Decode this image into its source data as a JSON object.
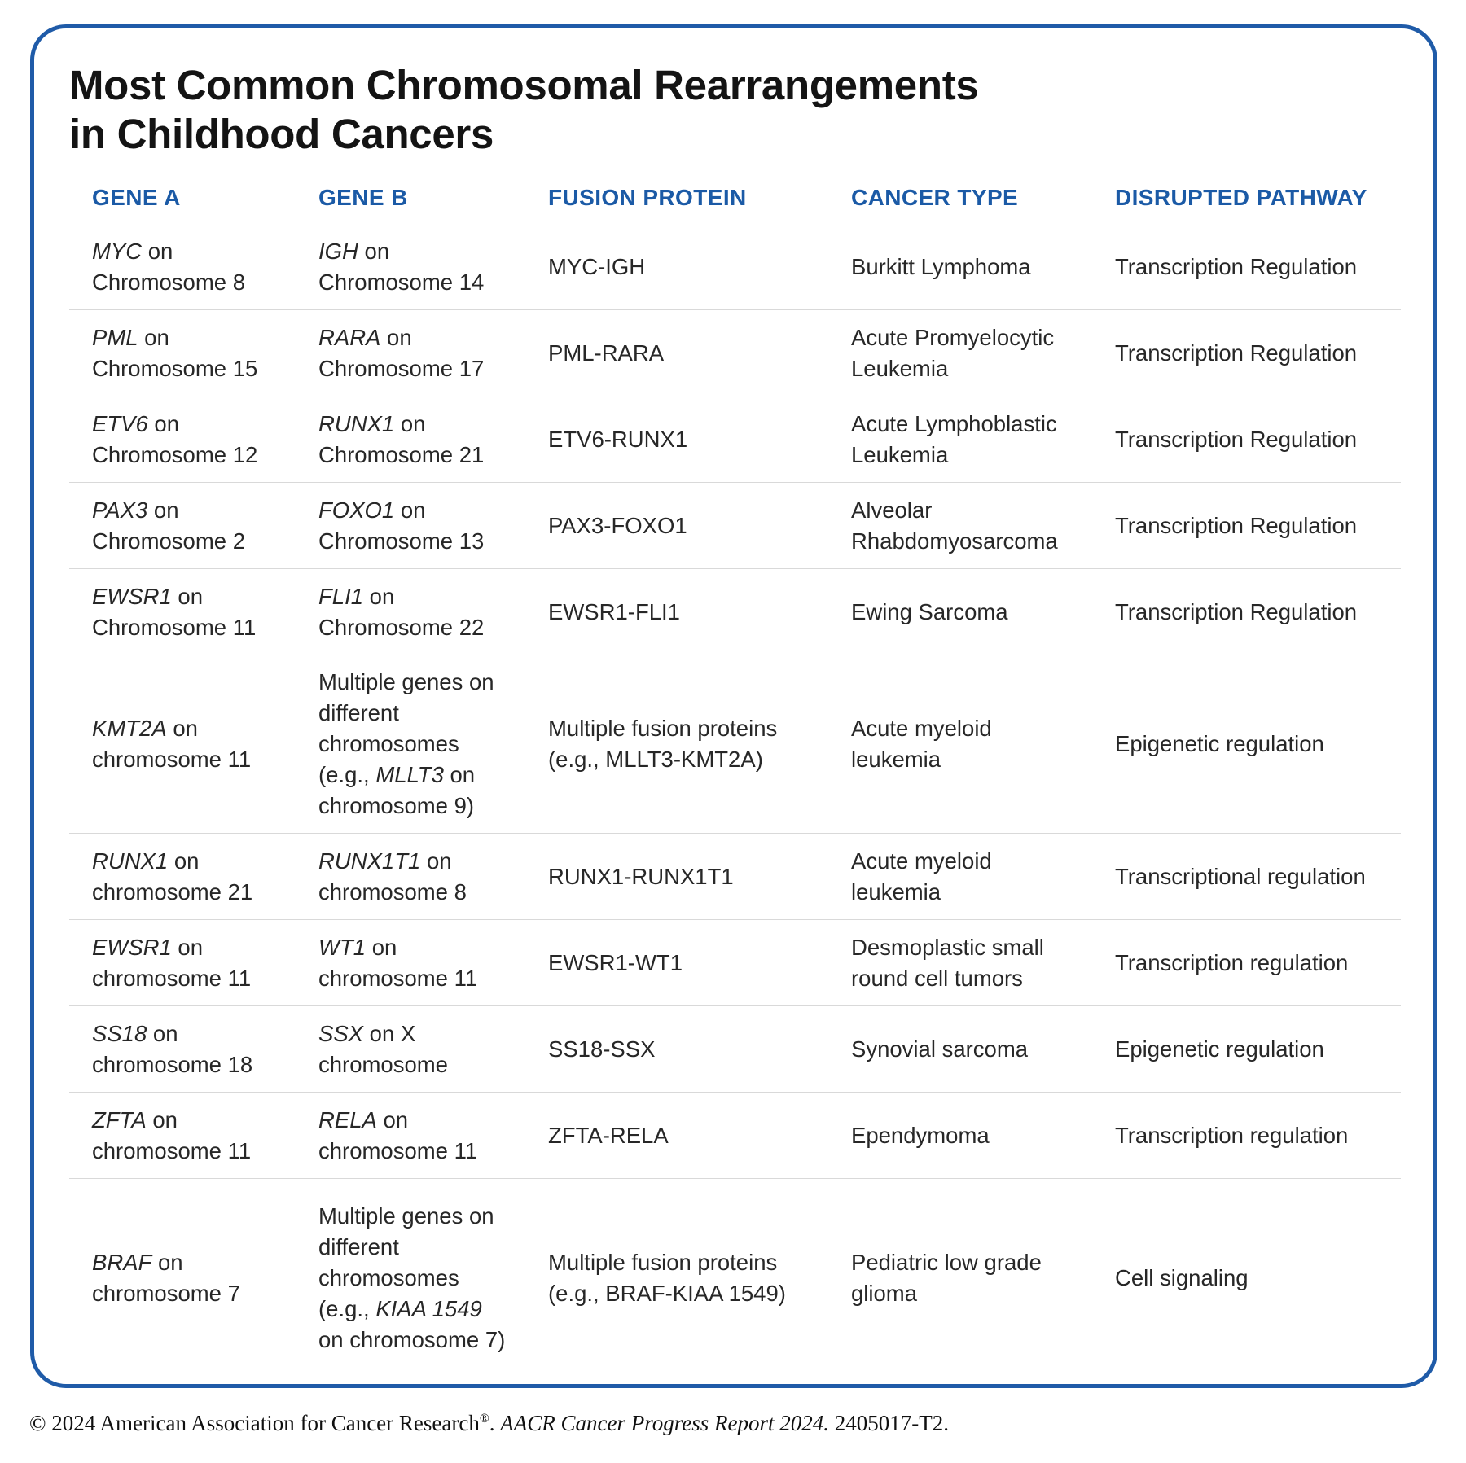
{
  "title": "Most Common Chromosomal Rearrangements\nin Childhood Cancers",
  "colors": {
    "accent_blue": "#1b5aa6",
    "border_blue": "#1f5ba8",
    "separator_gray": "#d9d9d9",
    "title_black": "#141414",
    "body_text": "#272727"
  },
  "table": {
    "columns": [
      "GENE A",
      "GENE B",
      "FUSION PROTEIN",
      "CANCER TYPE",
      "DISRUPTED PATHWAY"
    ],
    "rows": [
      {
        "gene_a": [
          [
            "MYC",
            true
          ],
          [
            " on Chromosome 8",
            false
          ]
        ],
        "gene_b": [
          [
            "IGH",
            true
          ],
          [
            " on Chromosome 14",
            false
          ]
        ],
        "fusion": [
          [
            "MYC-IGH",
            false
          ]
        ],
        "cancer": [
          [
            "Burkitt Lymphoma",
            false
          ]
        ],
        "pathway": [
          [
            "Transcription Regulation",
            false
          ]
        ]
      },
      {
        "gene_a": [
          [
            "PML",
            true
          ],
          [
            " on Chromosome 15",
            false
          ]
        ],
        "gene_b": [
          [
            "RARA",
            true
          ],
          [
            " on Chromosome 17",
            false
          ]
        ],
        "fusion": [
          [
            "PML-RARA",
            false
          ]
        ],
        "cancer": [
          [
            "Acute Promyelocytic Leukemia",
            false
          ]
        ],
        "pathway": [
          [
            "Transcription Regulation",
            false
          ]
        ]
      },
      {
        "gene_a": [
          [
            "ETV6",
            true
          ],
          [
            " on Chromosome 12",
            false
          ]
        ],
        "gene_b": [
          [
            "RUNX1",
            true
          ],
          [
            " on Chromosome 21",
            false
          ]
        ],
        "fusion": [
          [
            "ETV6-RUNX1",
            false
          ]
        ],
        "cancer": [
          [
            "Acute Lymphoblastic Leukemia",
            false
          ]
        ],
        "pathway": [
          [
            "Transcription Regulation",
            false
          ]
        ]
      },
      {
        "gene_a": [
          [
            "PAX3",
            true
          ],
          [
            " on Chromosome 2",
            false
          ]
        ],
        "gene_b": [
          [
            "FOXO1",
            true
          ],
          [
            " on Chromosome 13",
            false
          ]
        ],
        "fusion": [
          [
            "PAX3-FOXO1",
            false
          ]
        ],
        "cancer": [
          [
            "Alveolar Rhabdomyosarcoma",
            false
          ]
        ],
        "pathway": [
          [
            "Transcription Regulation",
            false
          ]
        ]
      },
      {
        "gene_a": [
          [
            "EWSR1",
            true
          ],
          [
            " on Chromosome 11",
            false
          ]
        ],
        "gene_b": [
          [
            "FLI1",
            true
          ],
          [
            " on Chromosome 22",
            false
          ]
        ],
        "fusion": [
          [
            "EWSR1-FLI1",
            false
          ]
        ],
        "cancer": [
          [
            "Ewing Sarcoma",
            false
          ]
        ],
        "pathway": [
          [
            "Transcription Regulation",
            false
          ]
        ]
      },
      {
        "gene_a": [
          [
            "KMT2A",
            true
          ],
          [
            " on chromosome 11",
            false
          ]
        ],
        "gene_b": [
          [
            "Multiple genes on different chromosomes (e.g., ",
            false
          ],
          [
            "MLLT3",
            true
          ],
          [
            " on chromosome 9)",
            false
          ]
        ],
        "fusion": [
          [
            "Multiple fusion proteins (e.g., MLLT3-KMT2A)",
            false
          ]
        ],
        "cancer": [
          [
            "Acute myeloid leukemia",
            false
          ]
        ],
        "pathway": [
          [
            "Epigenetic regulation",
            false
          ]
        ]
      },
      {
        "gene_a": [
          [
            "RUNX1",
            true
          ],
          [
            " on chromosome 21",
            false
          ]
        ],
        "gene_b": [
          [
            "RUNX1T1",
            true
          ],
          [
            " on chromosome 8",
            false
          ]
        ],
        "fusion": [
          [
            "RUNX1-RUNX1T1",
            false
          ]
        ],
        "cancer": [
          [
            "Acute myeloid leukemia",
            false
          ]
        ],
        "pathway": [
          [
            "Transcriptional regulation",
            false
          ]
        ]
      },
      {
        "gene_a": [
          [
            "EWSR1",
            true
          ],
          [
            " on chromosome 11",
            false
          ]
        ],
        "gene_b": [
          [
            "WT1",
            true
          ],
          [
            " on chromosome 11",
            false
          ]
        ],
        "fusion": [
          [
            "EWSR1-WT1",
            false
          ]
        ],
        "cancer": [
          [
            "Desmoplastic small round cell tumors",
            false
          ]
        ],
        "pathway": [
          [
            "Transcription regulation",
            false
          ]
        ]
      },
      {
        "gene_a": [
          [
            "SS18",
            true
          ],
          [
            " on chromosome 18",
            false
          ]
        ],
        "gene_b": [
          [
            "SSX",
            true
          ],
          [
            " on X chromosome",
            false
          ]
        ],
        "fusion": [
          [
            "SS18-SSX",
            false
          ]
        ],
        "cancer": [
          [
            "Synovial sarcoma",
            false
          ]
        ],
        "pathway": [
          [
            "Epigenetic regulation",
            false
          ]
        ]
      },
      {
        "gene_a": [
          [
            "ZFTA",
            true
          ],
          [
            " on chromosome 11",
            false
          ]
        ],
        "gene_b": [
          [
            "RELA",
            true
          ],
          [
            " on chromosome 11",
            false
          ]
        ],
        "fusion": [
          [
            "ZFTA-RELA",
            false
          ]
        ],
        "cancer": [
          [
            "Ependymoma",
            false
          ]
        ],
        "pathway": [
          [
            "Transcription regulation",
            false
          ]
        ]
      },
      {
        "pad": "lg",
        "gene_a": [
          [
            "BRAF",
            true
          ],
          [
            " on chromosome 7",
            false
          ]
        ],
        "gene_b": [
          [
            "Multiple genes on different chromosomes (e.g., ",
            false
          ],
          [
            "KIAA 1549",
            true
          ],
          [
            " on chromosome 7)",
            false
          ]
        ],
        "fusion": [
          [
            "Multiple fusion proteins (e.g., BRAF-KIAA 1549)",
            false
          ]
        ],
        "cancer": [
          [
            "Pediatric low grade glioma",
            false
          ]
        ],
        "pathway": [
          [
            "Cell signaling",
            false
          ]
        ]
      }
    ]
  },
  "footer": {
    "prefix": "© 2024 American Association for Cancer Research",
    "reg": "®",
    "after_reg": ". ",
    "citation": "AACR Cancer Progress Report 2024.",
    "suffix": " 2405017-T2."
  }
}
